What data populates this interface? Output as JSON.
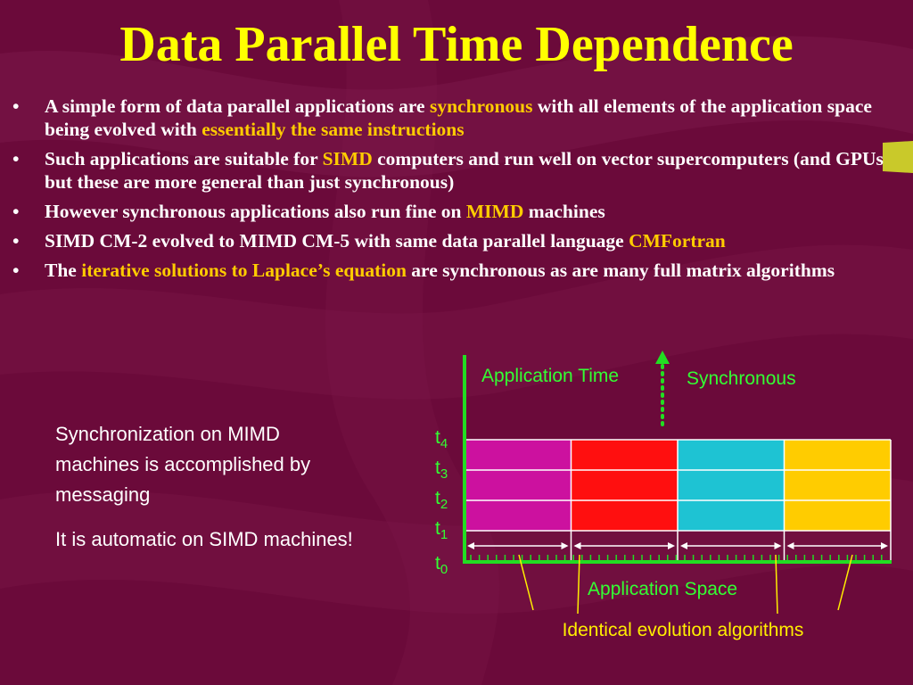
{
  "title": "Data Parallel Time Dependence",
  "bullets": [
    [
      {
        "text": "A simple form of data parallel applications are ",
        "hl": false
      },
      {
        "text": "synchronous",
        "hl": true
      },
      {
        "text": " with all elements of the application space being evolved with ",
        "hl": false
      },
      {
        "text": "essentially the same instructions",
        "hl": true
      }
    ],
    [
      {
        "text": "Such applications are suitable for ",
        "hl": false
      },
      {
        "text": "SIMD",
        "hl": true
      },
      {
        "text": " computers and run well on vector supercomputers (and GPUs but these are more general than just synchronous)",
        "hl": false
      }
    ],
    [
      {
        "text": "However synchronous applications also run fine on ",
        "hl": false
      },
      {
        "text": "MIMD",
        "hl": true
      },
      {
        "text": " machines",
        "hl": false
      }
    ],
    [
      {
        "text": "SIMD CM-2 evolved to MIMD CM-5 with same data parallel language ",
        "hl": false
      },
      {
        "text": "CMFortran",
        "hl": true
      }
    ],
    [
      {
        "text": "The ",
        "hl": false
      },
      {
        "text": "iterative solutions to Laplace’s equation",
        "hl": true
      },
      {
        "text": " are synchronous as are many full matrix algorithms",
        "hl": false
      }
    ]
  ],
  "side_note": {
    "para1": "Synchronization on MIMD machines is accomplished by messaging",
    "para2": "It is automatic on SIMD machines!"
  },
  "diagram": {
    "y_axis_label": "Application Time",
    "x_axis_label": "Application Space",
    "mode_label": "Synchronous",
    "bottom_label": "Identical evolution algorithms",
    "time_ticks": [
      "4",
      "3",
      "2",
      "1",
      "0"
    ],
    "time_symbol": "t",
    "columns": [
      {
        "color": "#cc119f"
      },
      {
        "color": "#ff0f0f"
      },
      {
        "color": "#1ec3d3"
      },
      {
        "color": "#ffcc00"
      }
    ]
  },
  "colors": {
    "background": "#6b0a3a",
    "title": "#ffff00",
    "highlight": "#ffcc00",
    "diagram_text": "#33ff33",
    "axis": "#22dd22",
    "bottom_label": "#ffee00"
  }
}
